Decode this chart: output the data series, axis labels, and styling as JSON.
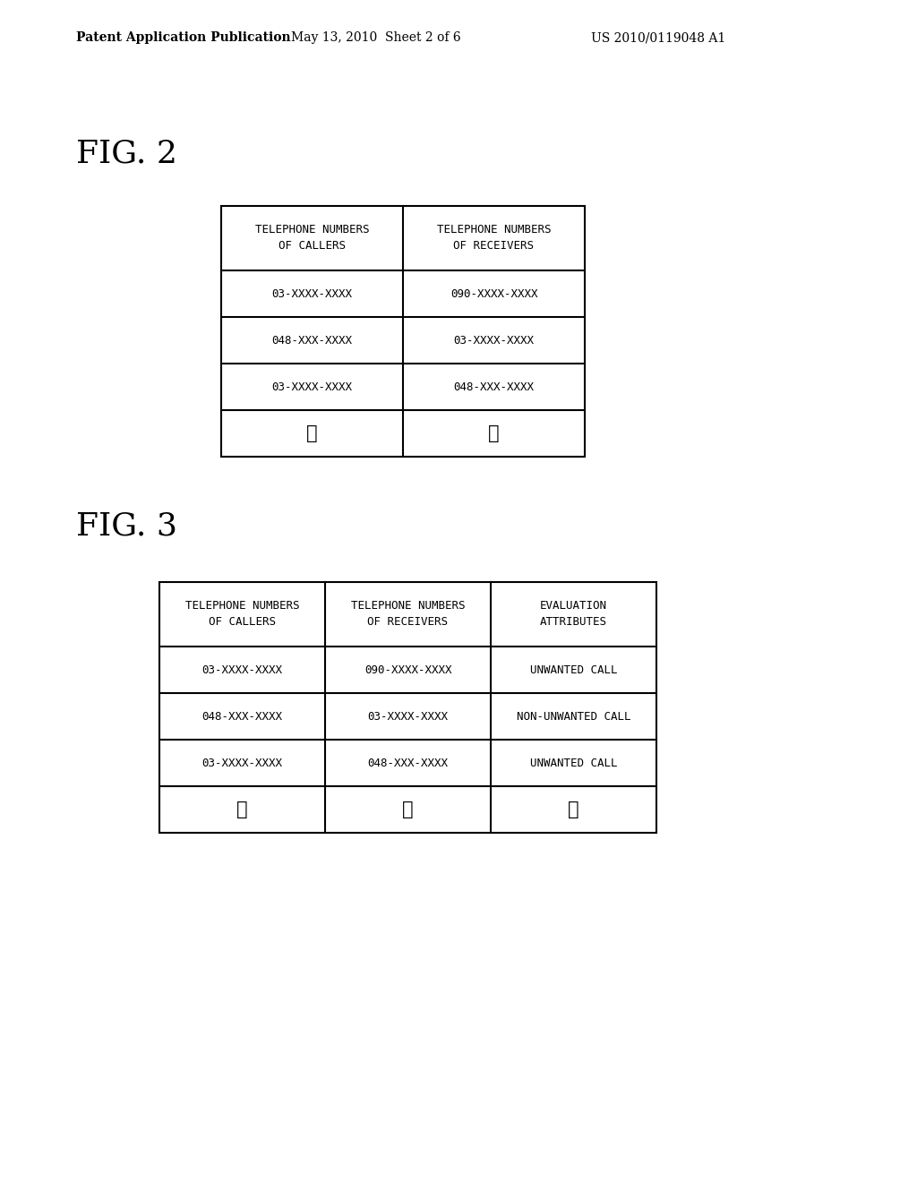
{
  "background_color": "#ffffff",
  "header_left": "Patent Application Publication",
  "header_mid": "May 13, 2010  Sheet 2 of 6",
  "header_right": "US 2010/0119048 A1",
  "header_fontsize": 10,
  "fig2_label": "FIG. 2",
  "fig3_label": "FIG. 3",
  "fig_label_fontsize": 26,
  "fig2_table": {
    "headers": [
      "TELEPHONE NUMBERS\nOF CALLERS",
      "TELEPHONE NUMBERS\nOF RECEIVERS"
    ],
    "rows": [
      [
        "03-XXXX-XXXX",
        "090-XXXX-XXXX"
      ],
      [
        "048-XXX-XXXX",
        "03-XXXX-XXXX"
      ],
      [
        "03-XXXX-XXXX",
        "048-XXX-XXXX"
      ],
      [
        "⋮",
        "⋮"
      ]
    ]
  },
  "fig3_table": {
    "headers": [
      "TELEPHONE NUMBERS\nOF CALLERS",
      "TELEPHONE NUMBERS\nOF RECEIVERS",
      "EVALUATION\nATTRIBUTES"
    ],
    "rows": [
      [
        "03-XXXX-XXXX",
        "090-XXXX-XXXX",
        "UNWANTED CALL"
      ],
      [
        "048-XXX-XXXX",
        "03-XXXX-XXXX",
        "NON-UNWANTED CALL"
      ],
      [
        "03-XXXX-XXXX",
        "048-XXX-XXXX",
        "UNWANTED CALL"
      ],
      [
        "⋮",
        "⋮",
        "⋮"
      ]
    ]
  },
  "cell_text_color": "#000000",
  "line_color": "#000000",
  "line_width": 1.5
}
